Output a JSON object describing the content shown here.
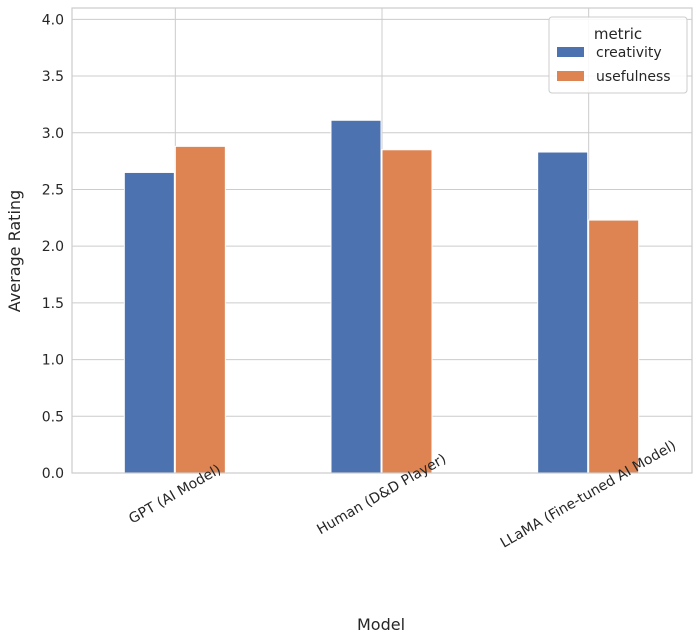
{
  "chart_data": {
    "type": "bar",
    "xlabel": "Model",
    "ylabel": "Average Rating",
    "categories": [
      "GPT (AI Model)",
      "Human (D&D Player)",
      "LLaMA (Fine-tuned AI Model)"
    ],
    "series": [
      {
        "name": "creativity",
        "values": [
          2.65,
          3.11,
          2.83
        ],
        "color": "#4c72b0"
      },
      {
        "name": "usefulness",
        "values": [
          2.88,
          2.85,
          2.23
        ],
        "color": "#dd8452"
      }
    ],
    "ylim": [
      0,
      4.1
    ],
    "yticks": [
      "0.0",
      "0.5",
      "1.0",
      "1.5",
      "2.0",
      "2.5",
      "3.0",
      "3.5",
      "4.0"
    ],
    "grid": true,
    "legend": {
      "title": "metric",
      "placement": "top-right"
    }
  }
}
